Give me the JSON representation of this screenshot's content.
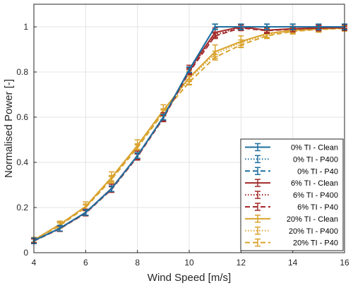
{
  "chart_data": {
    "type": "line",
    "xlabel": "Wind Speed [m/s]",
    "ylabel": "Normalised Power [-]",
    "xlim": [
      4,
      16
    ],
    "ylim": [
      0,
      1.1
    ],
    "xticks": [
      4,
      6,
      8,
      10,
      12,
      14,
      16
    ],
    "yticks": [
      0,
      0.2,
      0.4,
      0.6,
      0.8,
      1.0
    ],
    "xtick_labels": [
      "4",
      "6",
      "8",
      "10",
      "12",
      "14",
      "16"
    ],
    "ytick_labels": [
      "0",
      "0.2",
      "0.4",
      "0.6",
      "0.8",
      "1"
    ],
    "grid": true,
    "legend_position": "bottom-right",
    "x": [
      4,
      5,
      6,
      7,
      8,
      9,
      10,
      11,
      12,
      13,
      14,
      15,
      16
    ],
    "series": [
      {
        "name": "0% TI - Clean",
        "color": "#1f6f9f",
        "dash": "solid",
        "values": [
          0.053,
          0.108,
          0.178,
          0.283,
          0.43,
          0.6,
          0.81,
          1.0,
          1.0,
          1.0,
          1.0,
          1.0,
          1.0
        ]
      },
      {
        "name": "0% TI - P400",
        "color": "#1f6f9f",
        "dash": "dotted",
        "values": [
          0.053,
          0.108,
          0.178,
          0.283,
          0.43,
          0.6,
          0.81,
          1.0,
          1.0,
          1.0,
          1.0,
          1.0,
          1.0
        ]
      },
      {
        "name": "0% TI - P40",
        "color": "#1f6f9f",
        "dash": "dashed",
        "values": [
          0.053,
          0.108,
          0.178,
          0.283,
          0.43,
          0.6,
          0.81,
          1.0,
          1.0,
          1.0,
          1.0,
          1.0,
          1.0
        ]
      },
      {
        "name": "6% TI - Clean",
        "color": "#a32a2a",
        "dash": "solid",
        "values": [
          0.053,
          0.108,
          0.178,
          0.285,
          0.43,
          0.6,
          0.81,
          0.975,
          1.0,
          0.985,
          0.992,
          0.995,
          0.997
        ],
        "err": [
          0.008,
          0.012,
          0.015,
          0.018,
          0.02,
          0.02,
          0.02,
          0.02,
          0.008,
          0.01,
          0.006,
          0.005,
          0.004
        ]
      },
      {
        "name": "6% TI - P400",
        "color": "#a32a2a",
        "dash": "dotted",
        "values": [
          0.053,
          0.107,
          0.176,
          0.283,
          0.428,
          0.598,
          0.805,
          0.965,
          0.998,
          0.985,
          0.99,
          0.995,
          0.997
        ]
      },
      {
        "name": "6% TI - P40",
        "color": "#a32a2a",
        "dash": "dashed",
        "values": [
          0.052,
          0.106,
          0.175,
          0.28,
          0.425,
          0.595,
          0.8,
          0.96,
          0.995,
          0.983,
          0.99,
          0.994,
          0.996
        ]
      },
      {
        "name": "20% TI - Clean",
        "color": "#d9a32e",
        "dash": "solid",
        "values": [
          0.057,
          0.125,
          0.205,
          0.333,
          0.475,
          0.63,
          0.775,
          0.89,
          0.935,
          0.97,
          0.985,
          0.99,
          0.995
        ],
        "err": [
          0.01,
          0.015,
          0.02,
          0.025,
          0.025,
          0.025,
          0.03,
          0.03,
          0.025,
          0.02,
          0.012,
          0.008,
          0.006
        ]
      },
      {
        "name": "20% TI - P400",
        "color": "#d9a32e",
        "dash": "dotted",
        "values": [
          0.056,
          0.123,
          0.203,
          0.33,
          0.47,
          0.625,
          0.77,
          0.88,
          0.93,
          0.965,
          0.982,
          0.99,
          0.995
        ]
      },
      {
        "name": "20% TI - P40",
        "color": "#d9a32e",
        "dash": "dashed",
        "values": [
          0.055,
          0.12,
          0.2,
          0.325,
          0.465,
          0.62,
          0.755,
          0.865,
          0.92,
          0.96,
          0.98,
          0.988,
          0.993
        ]
      }
    ]
  }
}
